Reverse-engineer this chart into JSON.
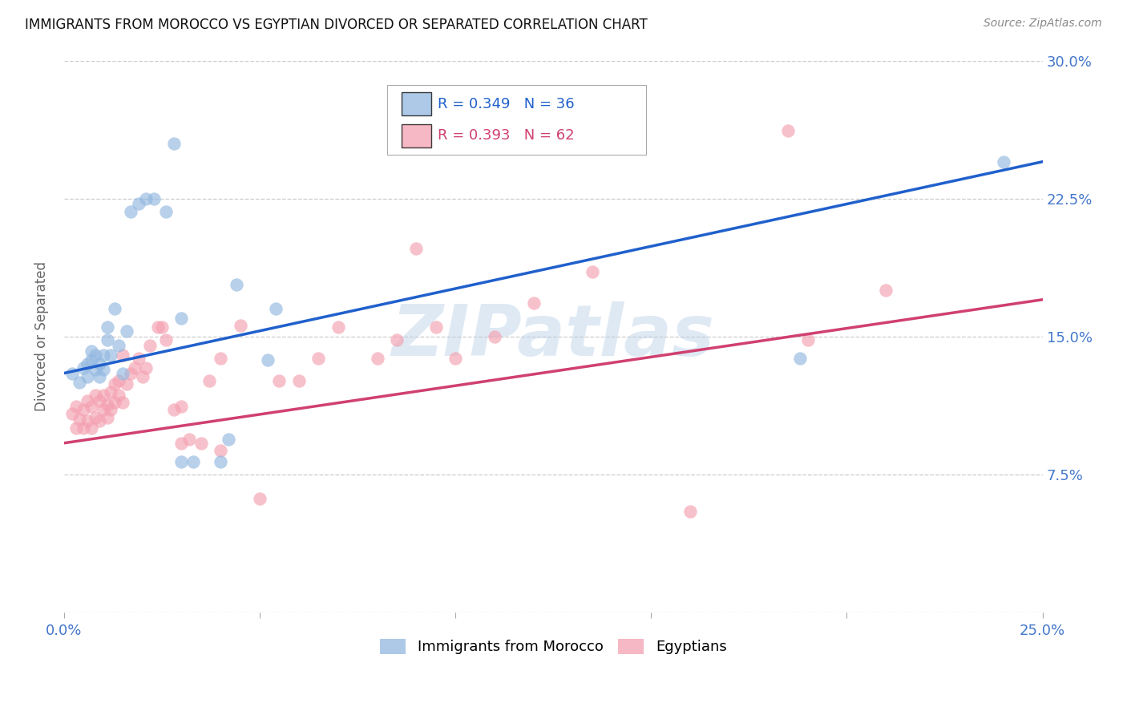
{
  "title": "IMMIGRANTS FROM MOROCCO VS EGYPTIAN DIVORCED OR SEPARATED CORRELATION CHART",
  "source": "Source: ZipAtlas.com",
  "ylabel": "Divorced or Separated",
  "watermark": "ZIPatlas",
  "xlim": [
    0.0,
    0.25
  ],
  "ylim": [
    0.0,
    0.3
  ],
  "xticks": [
    0.0,
    0.05,
    0.1,
    0.15,
    0.2,
    0.25
  ],
  "xticklabels": [
    "0.0%",
    "",
    "",
    "",
    "",
    "25.0%"
  ],
  "yticks": [
    0.0,
    0.075,
    0.15,
    0.225,
    0.3
  ],
  "yticklabels": [
    "",
    "7.5%",
    "15.0%",
    "22.5%",
    "30.0%"
  ],
  "legend_blue_r": "0.349",
  "legend_blue_n": "36",
  "legend_pink_r": "0.393",
  "legend_pink_n": "62",
  "blue_color": "#92b8e0",
  "pink_color": "#f4a0b0",
  "blue_line_color": "#2060cc",
  "pink_line_color": "#d04070",
  "tick_color": "#4477cc",
  "grid_color": "#cccccc",
  "blue_line_x": [
    0.0,
    0.25
  ],
  "blue_line_y": [
    0.13,
    0.245
  ],
  "pink_line_x": [
    0.0,
    0.25
  ],
  "pink_line_y": [
    0.092,
    0.17
  ],
  "blue_scatter_x": [
    0.002,
    0.004,
    0.005,
    0.006,
    0.006,
    0.007,
    0.007,
    0.008,
    0.008,
    0.009,
    0.009,
    0.01,
    0.01,
    0.011,
    0.011,
    0.012,
    0.013,
    0.014,
    0.015,
    0.016,
    0.017,
    0.019,
    0.021,
    0.023,
    0.026,
    0.028,
    0.03,
    0.033,
    0.04,
    0.042,
    0.044,
    0.052,
    0.054,
    0.188,
    0.24,
    0.03
  ],
  "blue_scatter_y": [
    0.13,
    0.125,
    0.133,
    0.128,
    0.135,
    0.137,
    0.142,
    0.132,
    0.14,
    0.135,
    0.128,
    0.14,
    0.132,
    0.148,
    0.155,
    0.14,
    0.165,
    0.145,
    0.13,
    0.153,
    0.218,
    0.222,
    0.225,
    0.225,
    0.218,
    0.255,
    0.16,
    0.082,
    0.082,
    0.094,
    0.178,
    0.137,
    0.165,
    0.138,
    0.245,
    0.082
  ],
  "pink_scatter_x": [
    0.002,
    0.003,
    0.003,
    0.004,
    0.005,
    0.005,
    0.006,
    0.006,
    0.007,
    0.007,
    0.008,
    0.008,
    0.009,
    0.009,
    0.01,
    0.01,
    0.011,
    0.011,
    0.012,
    0.012,
    0.013,
    0.013,
    0.014,
    0.014,
    0.015,
    0.015,
    0.016,
    0.017,
    0.018,
    0.019,
    0.02,
    0.021,
    0.022,
    0.024,
    0.025,
    0.026,
    0.028,
    0.03,
    0.032,
    0.035,
    0.037,
    0.04,
    0.045,
    0.05,
    0.055,
    0.06,
    0.065,
    0.07,
    0.08,
    0.085,
    0.09,
    0.095,
    0.1,
    0.11,
    0.12,
    0.135,
    0.16,
    0.185,
    0.19,
    0.21,
    0.03,
    0.04
  ],
  "pink_scatter_y": [
    0.108,
    0.1,
    0.112,
    0.105,
    0.1,
    0.11,
    0.104,
    0.115,
    0.1,
    0.112,
    0.106,
    0.118,
    0.104,
    0.115,
    0.11,
    0.118,
    0.106,
    0.113,
    0.11,
    0.12,
    0.114,
    0.124,
    0.118,
    0.126,
    0.114,
    0.14,
    0.124,
    0.13,
    0.133,
    0.138,
    0.128,
    0.133,
    0.145,
    0.155,
    0.155,
    0.148,
    0.11,
    0.112,
    0.094,
    0.092,
    0.126,
    0.138,
    0.156,
    0.062,
    0.126,
    0.126,
    0.138,
    0.155,
    0.138,
    0.148,
    0.198,
    0.155,
    0.138,
    0.15,
    0.168,
    0.185,
    0.055,
    0.262,
    0.148,
    0.175,
    0.092,
    0.088
  ]
}
